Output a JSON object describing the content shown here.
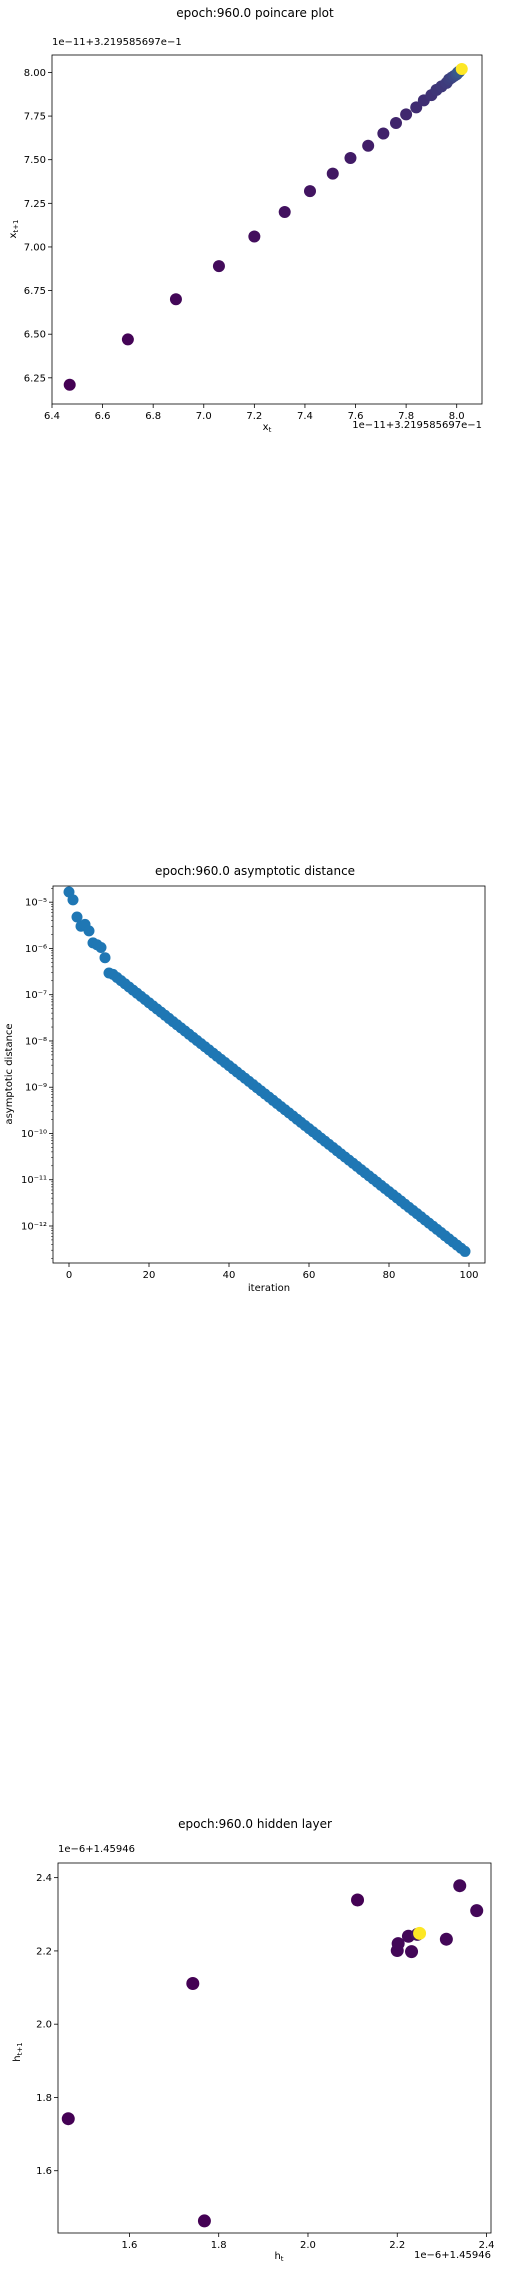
{
  "chart_data": [
    {
      "type": "scatter",
      "title": "epoch:960.0 poincare plot",
      "xlabel": "x_t",
      "ylabel": "x_t+1",
      "offset_x": "1e−11+3.219585697e−1",
      "offset_y": "1e−11+3.219585697e−1",
      "xlim": [
        6.4,
        8.1
      ],
      "ylim": [
        6.1,
        8.1
      ],
      "xticks": [
        "6.4",
        "6.6",
        "6.8",
        "7.0",
        "7.2",
        "7.4",
        "7.6",
        "7.8",
        "8.0"
      ],
      "yticks": [
        "6.25",
        "6.50",
        "6.75",
        "7.00",
        "7.25",
        "7.50",
        "7.75",
        "8.00"
      ],
      "colormap": [
        "#440154",
        "#3b528b",
        "#21918c",
        "#5ec962",
        "#fde725"
      ],
      "points": [
        [
          6.47,
          6.21,
          0.0
        ],
        [
          6.7,
          6.47,
          0.01
        ],
        [
          6.89,
          6.7,
          0.02
        ],
        [
          7.06,
          6.89,
          0.03
        ],
        [
          7.2,
          7.06,
          0.04
        ],
        [
          7.32,
          7.2,
          0.05
        ],
        [
          7.42,
          7.32,
          0.06
        ],
        [
          7.51,
          7.42,
          0.07
        ],
        [
          7.58,
          7.51,
          0.08
        ],
        [
          7.65,
          7.58,
          0.09
        ],
        [
          7.71,
          7.65,
          0.1
        ],
        [
          7.76,
          7.71,
          0.11
        ],
        [
          7.8,
          7.76,
          0.12
        ],
        [
          7.84,
          7.8,
          0.13
        ],
        [
          7.87,
          7.84,
          0.14
        ],
        [
          7.9,
          7.87,
          0.15
        ],
        [
          7.92,
          7.9,
          0.16
        ],
        [
          7.94,
          7.92,
          0.17
        ],
        [
          7.96,
          7.94,
          0.18
        ],
        [
          7.97,
          7.96,
          0.19
        ],
        [
          7.98,
          7.97,
          0.2
        ],
        [
          7.99,
          7.98,
          0.22
        ],
        [
          8.0,
          7.99,
          0.24
        ],
        [
          8.005,
          8.0,
          0.26
        ],
        [
          8.01,
          8.005,
          0.28
        ],
        [
          8.02,
          8.02,
          1.0
        ]
      ]
    },
    {
      "type": "scatter",
      "title": "epoch:960.0 asymptotic distance",
      "xlabel": "iteration",
      "ylabel": "asymptotic distance",
      "xlim": [
        -4,
        104
      ],
      "ylim_log10": [
        -12.8,
        -4.65
      ],
      "xticks": [
        0,
        20,
        40,
        60,
        80,
        100
      ],
      "yticks": [
        {
          "exp": -5,
          "label": "10⁻⁵"
        },
        {
          "exp": -6,
          "label": "10⁻⁶"
        },
        {
          "exp": -7,
          "label": "10⁻⁷"
        },
        {
          "exp": -8,
          "label": "10⁻⁸"
        },
        {
          "exp": -9,
          "label": "10⁻⁹"
        },
        {
          "exp": -10,
          "label": "10⁻¹⁰"
        },
        {
          "exp": -11,
          "label": "10⁻¹¹"
        },
        {
          "exp": -12,
          "label": "10⁻¹²"
        }
      ],
      "color": "#1f77b4",
      "initial_log10": [
        -4.78,
        -4.95,
        -5.32,
        -5.52,
        -5.48,
        -5.62,
        -5.88,
        -5.92,
        -5.98,
        -6.2,
        -6.53
      ],
      "tail": {
        "start_x": 11,
        "start_log10": -6.56,
        "end_x": 99,
        "end_log10": -12.55
      }
    },
    {
      "type": "scatter",
      "title": "epoch:960.0 hidden layer",
      "xlabel": "h_t",
      "ylabel": "h_t+1",
      "offset_x": "1e−6+1.45946",
      "offset_y": "1e−6+1.45946",
      "xlim": [
        1.44,
        2.41
      ],
      "ylim": [
        1.43,
        2.44
      ],
      "xticks": [
        "1.6",
        "1.8",
        "2.0",
        "2.2",
        "2.4"
      ],
      "yticks": [
        "1.6",
        "1.8",
        "2.0",
        "2.2",
        "2.4"
      ],
      "colormap": [
        "#440154",
        "#3b528b",
        "#21918c",
        "#5ec962",
        "#fde725"
      ],
      "points": [
        [
          1.463,
          1.742,
          0.0
        ],
        [
          1.742,
          2.111,
          0.0
        ],
        [
          1.768,
          1.463,
          0.0
        ],
        [
          2.111,
          2.339,
          0.0
        ],
        [
          2.2,
          2.201,
          0.02
        ],
        [
          2.202,
          2.22,
          0.02
        ],
        [
          2.225,
          2.24,
          0.02
        ],
        [
          2.232,
          2.198,
          0.02
        ],
        [
          2.245,
          2.245,
          0.05
        ],
        [
          2.31,
          2.232,
          0.02
        ],
        [
          2.34,
          2.378,
          0.02
        ],
        [
          2.378,
          2.31,
          0.02
        ],
        [
          2.25,
          2.248,
          1.0
        ]
      ]
    }
  ]
}
